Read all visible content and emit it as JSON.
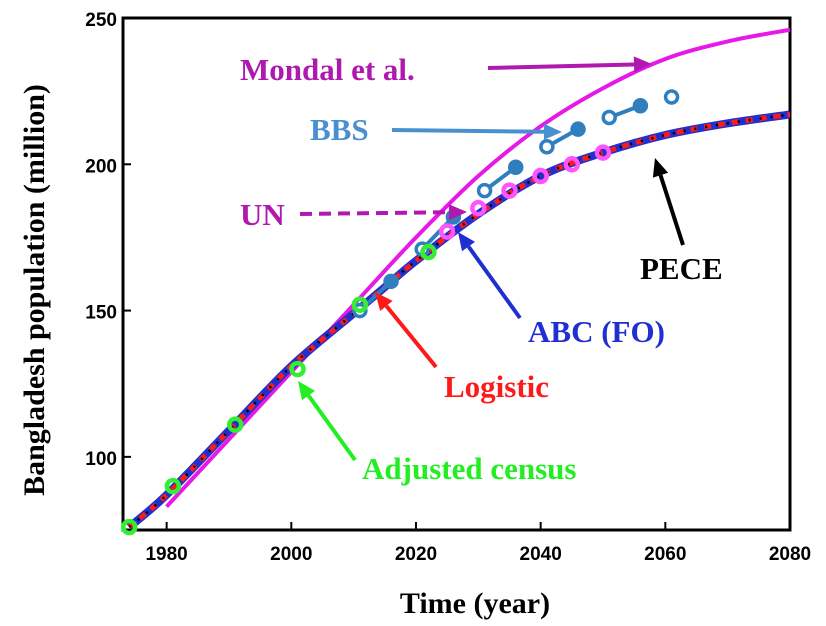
{
  "chart_data": {
    "type": "line",
    "xlabel": "Time (year)",
    "ylabel": "Bangladesh population (million)",
    "xlim": [
      1973,
      2080
    ],
    "ylim": [
      75,
      250
    ],
    "xticks": [
      1980,
      2000,
      2020,
      2040,
      2060,
      2080
    ],
    "yticks": [
      100,
      150,
      200,
      250
    ],
    "grid": false,
    "series": [
      {
        "name": "Mondal et al.",
        "style": "solid",
        "color": "#e619e6",
        "x": [
          1980,
          1990,
          2000,
          2010,
          2020,
          2030,
          2040,
          2050,
          2060,
          2070,
          2080
        ],
        "y": [
          83,
          106,
          129,
          152,
          175,
          196,
          213,
          226,
          236,
          242,
          246
        ]
      },
      {
        "name": "ABC (FO)",
        "style": "solid",
        "color": "#1f2fd0",
        "x": [
          1974,
          1980,
          1990,
          2000,
          2010,
          2015,
          2020,
          2030,
          2040,
          2050,
          2060,
          2070,
          2080
        ],
        "y": [
          76,
          87,
          109,
          131,
          149,
          158,
          167,
          183,
          196,
          204,
          210,
          214,
          217
        ]
      },
      {
        "name": "Logistic",
        "style": "dashed",
        "color": "#ff1a1a",
        "x": [
          1974,
          1980,
          1990,
          2000,
          2010,
          2015,
          2020,
          2030,
          2040,
          2050,
          2060,
          2070,
          2080
        ],
        "y": [
          76,
          87,
          109,
          131,
          149,
          158,
          167,
          183,
          196,
          204,
          210,
          214,
          217
        ]
      },
      {
        "name": "PECE",
        "style": "dotted",
        "color": "#000000",
        "x": [
          1974,
          1980,
          1990,
          2000,
          2010,
          2015,
          2020,
          2030,
          2040,
          2050,
          2060,
          2070,
          2080
        ],
        "y": [
          76,
          87,
          109,
          131,
          149,
          158,
          167,
          183,
          196,
          204,
          210,
          214,
          217
        ]
      },
      {
        "name": "BBS",
        "style": "marker-line",
        "color": "#2f7fbf",
        "x": [
          2011,
          2016,
          2021,
          2026,
          2031,
          2036,
          2041,
          2046,
          2051,
          2056,
          2061
        ],
        "y": [
          150,
          160,
          171,
          182,
          191,
          199,
          206,
          212,
          216,
          220,
          223
        ]
      },
      {
        "name": "UN",
        "style": "markers",
        "color": "#ff55ff",
        "x": [
          2025,
          2030,
          2035,
          2040,
          2045,
          2050
        ],
        "y": [
          177,
          185,
          191,
          196,
          200,
          204
        ]
      },
      {
        "name": "Adjusted census",
        "style": "markers",
        "color": "#33ee33",
        "x": [
          1974,
          1981,
          1991,
          2001,
          2011,
          2022
        ],
        "y": [
          76,
          90,
          111,
          130,
          152,
          170
        ]
      }
    ],
    "annotations": [
      {
        "text": "Mondal et al.",
        "color": "#b019b0",
        "arrow": "solid"
      },
      {
        "text": "BBS",
        "color": "#4a90d0",
        "arrow": "solid"
      },
      {
        "text": "UN",
        "color": "#b019b0",
        "arrow": "dashed"
      },
      {
        "text": "PECE",
        "color": "#000000",
        "arrow": "solid"
      },
      {
        "text": "ABC (FO)",
        "color": "#1f2fd0",
        "arrow": "solid"
      },
      {
        "text": "Logistic",
        "color": "#ff1a1a",
        "arrow": "solid"
      },
      {
        "text": "Adjusted census",
        "color": "#22ee22",
        "arrow": "solid"
      }
    ]
  }
}
